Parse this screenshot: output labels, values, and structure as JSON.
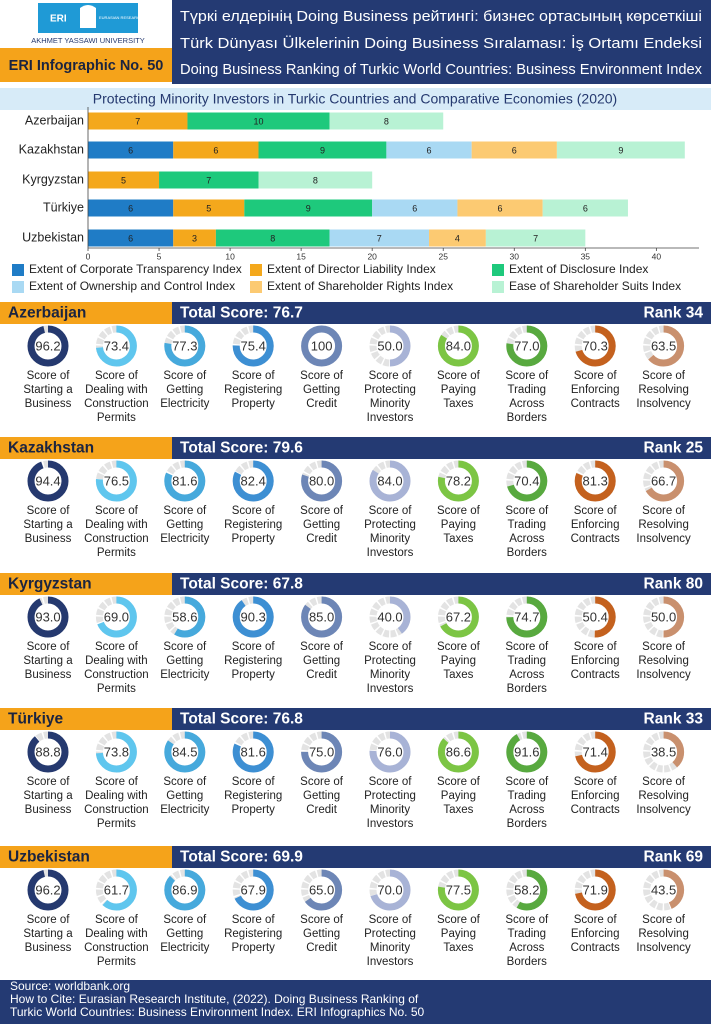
{
  "header": {
    "logo_abbr": "ERI",
    "logo_institute": "EURASIAN RESEARCH INSTITUTE",
    "logo_university": "AKHMET YASSAWI UNIVERSITY",
    "infographic_no": "ERI Infographic No. 50",
    "titles": [
      "Түркі елдерінің Doing Business рейтингі: бизнес ортасының көрсеткіші",
      "Türk Dünyası Ülkelerinin Doing Business Sıralaması: İş Ortamı Endeksi",
      "Doing Business Ranking of Turkic World Countries: Business Environment Index"
    ]
  },
  "chart_data": {
    "type": "stacked-bar",
    "title": "Protecting Minority Investors in Turkic Countries and Comparative Economies (2020)",
    "categories": [
      "Azerbaijan",
      "Kazakhstan",
      "Kyrgyzstan",
      "Türkiye",
      "Uzbekistan"
    ],
    "series": [
      {
        "name": "Extent of Corporate Transparency Index",
        "color": "#1f7cc6",
        "values": [
          0,
          6,
          0,
          6,
          6
        ]
      },
      {
        "name": "Extent of Director Liability Index",
        "color": "#f4a81c",
        "values": [
          7,
          6,
          5,
          5,
          3
        ]
      },
      {
        "name": "Extent of Disclosure Index",
        "color": "#1ec97c",
        "values": [
          10,
          9,
          7,
          9,
          8
        ]
      },
      {
        "name": "Extent of Ownership and Control Index",
        "color": "#a9d9f3",
        "values": [
          0,
          6,
          0,
          6,
          7
        ]
      },
      {
        "name": "Extent of Shareholder Rights Index",
        "color": "#fcca72",
        "values": [
          0,
          6,
          0,
          6,
          4
        ]
      },
      {
        "name": "Ease of Shareholder Suits Index",
        "color": "#b8f2d4",
        "values": [
          8,
          9,
          8,
          6,
          7
        ]
      }
    ],
    "xlim": [
      0,
      43
    ],
    "xticks": [
      0,
      5,
      10,
      15,
      20,
      25,
      30,
      35,
      40
    ]
  },
  "indicators": [
    {
      "name": "Score of Starting a Business",
      "color": "#25396f"
    },
    {
      "name": "Score of Dealing with Construction Permits",
      "color": "#5fc6ee"
    },
    {
      "name": "Score of Getting Electricity",
      "color": "#46a9dc"
    },
    {
      "name": "Score of Registering Property",
      "color": "#3d8fd3"
    },
    {
      "name": "Score of Getting Credit",
      "color": "#6d86b6"
    },
    {
      "name": "Score of Protecting Minority Investors",
      "color": "#a8b3d6"
    },
    {
      "name": "Score of Paying Taxes",
      "color": "#7cc544"
    },
    {
      "name": "Score of Trading Across Borders",
      "color": "#58a93f"
    },
    {
      "name": "Score of Enforcing Contracts",
      "color": "#c4611e"
    },
    {
      "name": "Score of Resolving Insolvency",
      "color": "#c9906e"
    }
  ],
  "countries": [
    {
      "name": "Azerbaijan",
      "total_score": "Total Score: 76.7",
      "rank": "Rank 34",
      "scores": [
        96.2,
        73.4,
        77.3,
        75.4,
        100,
        50,
        84,
        77,
        70.3,
        63.5
      ],
      "score_labels": [
        "96.2",
        "73.4",
        "77.3",
        "75.4",
        "100",
        "50.0",
        "84.0",
        "77.0",
        "70.3",
        "63.5"
      ]
    },
    {
      "name": "Kazakhstan",
      "total_score": "Total Score: 79.6",
      "rank": "Rank 25",
      "scores": [
        94.4,
        76.5,
        81.6,
        82.4,
        80,
        84,
        78.2,
        70.4,
        81.3,
        66.7
      ],
      "score_labels": [
        "94.4",
        "76.5",
        "81.6",
        "82.4",
        "80.0",
        "84.0",
        "78.2",
        "70.4",
        "81.3",
        "66.7"
      ]
    },
    {
      "name": "Kyrgyzstan",
      "total_score": "Total Score: 67.8",
      "rank": "Rank 80",
      "scores": [
        93,
        69,
        58.6,
        90.3,
        85,
        40,
        67.2,
        74.7,
        50.4,
        50
      ],
      "score_labels": [
        "93.0",
        "69.0",
        "58.6",
        "90.3",
        "85.0",
        "40.0",
        "67.2",
        "74.7",
        "50.4",
        "50.0"
      ]
    },
    {
      "name": "Türkiye",
      "total_score": "Total Score: 76.8",
      "rank": "Rank 33",
      "scores": [
        88.8,
        73.8,
        84.5,
        81.6,
        75,
        76,
        86.6,
        91.6,
        71.4,
        38.5
      ],
      "score_labels": [
        "88.8",
        "73.8",
        "84.5",
        "81.6",
        "75.0",
        "76.0",
        "86.6",
        "91.6",
        "71.4",
        "38.5"
      ]
    },
    {
      "name": "Uzbekistan",
      "total_score": "Total Score: 69.9",
      "rank": "Rank 69",
      "scores": [
        96.2,
        61.7,
        86.9,
        67.9,
        65,
        70,
        77.5,
        58.2,
        71.9,
        43.5
      ],
      "score_labels": [
        "96.2",
        "61.7",
        "86.9",
        "67.9",
        "65.0",
        "70.0",
        "77.5",
        "58.2",
        "71.9",
        "43.5"
      ]
    }
  ],
  "footer": {
    "lines": [
      "Source: worldbank.org",
      "How to Cite: Eurasian Research Institute, (2022). Doing Business Ranking of",
      "Turkic World Countries: Business Environment Index. ERI Infographics No. 50"
    ]
  }
}
